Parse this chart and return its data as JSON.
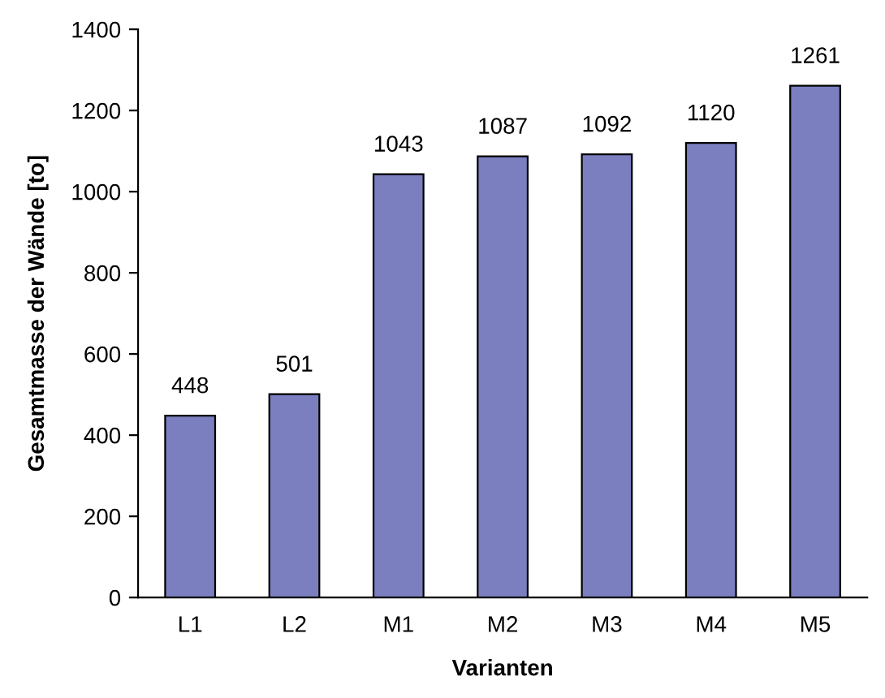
{
  "chart_data": {
    "type": "bar",
    "xlabel": "Varianten",
    "ylabel": "Gesamtmasse der Wände [to]",
    "categories": [
      "L1",
      "L2",
      "M1",
      "M2",
      "M3",
      "M4",
      "M5"
    ],
    "values": [
      448,
      501,
      1043,
      1087,
      1092,
      1120,
      1261
    ],
    "color": "#7b7fc0",
    "ylim": [
      0,
      1400
    ],
    "yticks": [
      0,
      200,
      400,
      600,
      800,
      1000,
      1200,
      1400
    ],
    "grid": false,
    "data_labels": true
  }
}
